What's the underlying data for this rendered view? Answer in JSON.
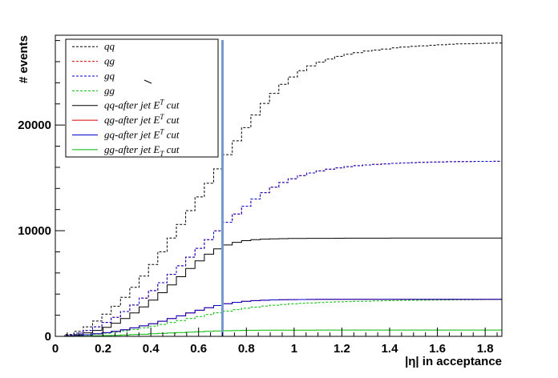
{
  "chart_data": {
    "type": "line",
    "title": "",
    "xlabel": "|η| in acceptance",
    "ylabel": "# events",
    "xlim": [
      0,
      1.87
    ],
    "ylim": [
      0,
      28500
    ],
    "x_ticks": [
      {
        "value": 0,
        "label": "0"
      },
      {
        "value": 0.2,
        "label": "0.2"
      },
      {
        "value": 0.4,
        "label": "0.4"
      },
      {
        "value": 0.6,
        "label": "0.6"
      },
      {
        "value": 0.8,
        "label": "0.8"
      },
      {
        "value": 1,
        "label": "1"
      },
      {
        "value": 1.2,
        "label": "1.2"
      },
      {
        "value": 1.4,
        "label": "1.4"
      },
      {
        "value": 1.6,
        "label": "1.6"
      },
      {
        "value": 1.8,
        "label": "1.8"
      }
    ],
    "y_ticks": [
      {
        "value": 0,
        "label": "0"
      },
      {
        "value": 10000,
        "label": "10000"
      },
      {
        "value": 20000,
        "label": "20000"
      }
    ],
    "cut_line_x": 0.7,
    "cut_line_color": "#7799cc",
    "legend_position": "top-left",
    "grid": false,
    "series": [
      {
        "name": "qq",
        "key": "qq",
        "color": "#000000",
        "dashed": true,
        "values": [
          0,
          180,
          480,
          900,
          1450,
          2100,
          2850,
          3700,
          4650,
          5700,
          6800,
          8000,
          9300,
          10600,
          11900,
          13200,
          14500,
          15850,
          17200,
          18500,
          19750,
          20950,
          22050,
          23000,
          23850,
          24550,
          25150,
          25600,
          25950,
          26250,
          26500,
          26700,
          26850,
          27000,
          27100,
          27200,
          27300,
          27380,
          27450,
          27500,
          27550,
          27600,
          27650,
          27680,
          27700,
          27720,
          27740,
          27760
        ]
      },
      {
        "name": "qg",
        "key": "qg",
        "color": "#dd0000",
        "dashed": true,
        "values": [
          0,
          120,
          300,
          560,
          900,
          1320,
          1800,
          2350,
          2960,
          3620,
          4330,
          5080,
          5870,
          6680,
          7500,
          8330,
          9160,
          9980,
          10800,
          11580,
          12320,
          13000,
          13600,
          14120,
          14560,
          14920,
          15220,
          15460,
          15660,
          15820,
          15950,
          16060,
          16150,
          16220,
          16280,
          16330,
          16370,
          16410,
          16440,
          16470,
          16490,
          16510,
          16530,
          16540,
          16550,
          16560,
          16565,
          16570
        ]
      },
      {
        "name": "gq",
        "key": "gq",
        "color": "#0000cc",
        "dashed": true,
        "values": [
          0,
          120,
          300,
          560,
          900,
          1320,
          1800,
          2350,
          2960,
          3620,
          4330,
          5080,
          5870,
          6680,
          7500,
          8330,
          9160,
          9980,
          10800,
          11580,
          12320,
          13000,
          13600,
          14120,
          14560,
          14920,
          15220,
          15460,
          15660,
          15820,
          15950,
          16060,
          16150,
          16220,
          16280,
          16330,
          16370,
          16410,
          16440,
          16470,
          16490,
          16510,
          16530,
          16540,
          16550,
          16560,
          16565,
          16570
        ]
      },
      {
        "name": "gg",
        "key": "gg",
        "color": "#00bb00",
        "dashed": true,
        "values": [
          0,
          30,
          70,
          130,
          210,
          300,
          400,
          520,
          650,
          800,
          960,
          1130,
          1310,
          1500,
          1690,
          1880,
          2060,
          2230,
          2390,
          2530,
          2660,
          2770,
          2870,
          2950,
          3020,
          3080,
          3130,
          3170,
          3210,
          3240,
          3270,
          3290,
          3310,
          3330,
          3350,
          3370,
          3390,
          3400,
          3410,
          3420,
          3430,
          3440,
          3450,
          3460,
          3470,
          3480,
          3490,
          3500
        ]
      },
      {
        "name": "qq-after jet E_T cut",
        "key": "qq_cut",
        "color": "#000000",
        "dashed": false,
        "values": [
          0,
          60,
          160,
          330,
          560,
          860,
          1240,
          1690,
          2210,
          2790,
          3430,
          4130,
          4870,
          5650,
          6420,
          7150,
          7780,
          8280,
          8650,
          8900,
          9060,
          9150,
          9200,
          9230,
          9250,
          9260,
          9270,
          9275,
          9280,
          9280,
          9285,
          9290,
          9290,
          9290,
          9295,
          9295,
          9300,
          9300,
          9300,
          9300,
          9300,
          9300,
          9300,
          9300,
          9300,
          9300,
          9300,
          9300
        ]
      },
      {
        "name": "qg-after jet E_T cut",
        "key": "qg_cut",
        "color": "#dd0000",
        "dashed": false,
        "values": [
          0,
          30,
          80,
          150,
          240,
          350,
          480,
          630,
          800,
          990,
          1200,
          1430,
          1680,
          1940,
          2210,
          2470,
          2710,
          2920,
          3090,
          3220,
          3310,
          3380,
          3420,
          3450,
          3470,
          3480,
          3490,
          3495,
          3500,
          3500,
          3505,
          3505,
          3510,
          3510,
          3510,
          3510,
          3510,
          3510,
          3510,
          3510,
          3510,
          3510,
          3510,
          3510,
          3510,
          3510,
          3510,
          3510
        ]
      },
      {
        "name": "gq-after jet E_T cut",
        "key": "gq_cut",
        "color": "#0000cc",
        "dashed": false,
        "values": [
          0,
          30,
          80,
          150,
          240,
          350,
          480,
          630,
          800,
          990,
          1200,
          1430,
          1680,
          1940,
          2210,
          2470,
          2710,
          2920,
          3090,
          3220,
          3310,
          3380,
          3420,
          3450,
          3470,
          3480,
          3490,
          3495,
          3500,
          3500,
          3505,
          3505,
          3510,
          3510,
          3510,
          3510,
          3510,
          3510,
          3510,
          3510,
          3510,
          3510,
          3510,
          3510,
          3510,
          3510,
          3510,
          3510
        ]
      },
      {
        "name": "gg-after jet E_T cut",
        "key": "gg_cut",
        "color": "#00bb00",
        "dashed": false,
        "values": [
          0,
          5,
          15,
          30,
          50,
          75,
          100,
          130,
          165,
          200,
          240,
          280,
          320,
          360,
          400,
          440,
          475,
          505,
          530,
          550,
          565,
          575,
          582,
          587,
          590,
          592,
          594,
          595,
          596,
          597,
          598,
          598,
          599,
          599,
          600,
          600,
          600,
          600,
          600,
          600,
          600,
          600,
          600,
          600,
          600,
          600,
          600,
          600
        ]
      }
    ],
    "bin_width": 0.039
  }
}
